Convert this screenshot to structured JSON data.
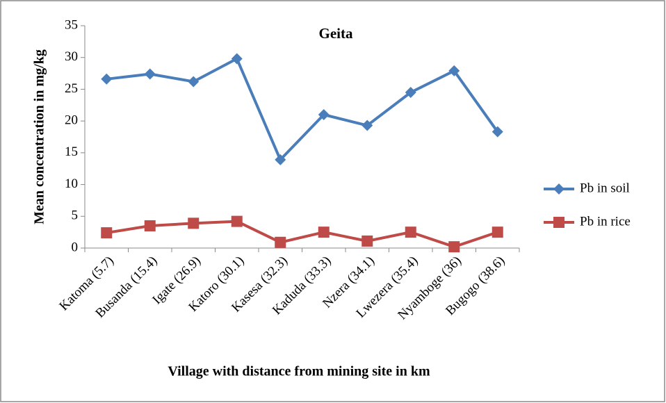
{
  "chart_data": {
    "type": "line",
    "title": "Geita",
    "x_label": "Village with distance from mining site in km",
    "y_label": "Mean concentration in mg/kg",
    "categories": [
      "Katoma (5.7)",
      "Busanda (15.4)",
      "Igate (26.9)",
      "Katoro (30.1)",
      "Kasesa (32.3)",
      "Kaduda (33.3)",
      "Nzera (34.1)",
      "Lwezera (35.4)",
      "Nyamboge (36)",
      "Bugogo (38.6)"
    ],
    "series": [
      {
        "name": "Pb in soil",
        "color": "#4a7ebb",
        "marker": "diamond",
        "values": [
          26.6,
          27.4,
          26.2,
          29.8,
          13.9,
          21.0,
          19.3,
          24.5,
          27.9,
          18.3
        ]
      },
      {
        "name": "Pb in rice",
        "color": "#be4b48",
        "marker": "square",
        "values": [
          2.4,
          3.5,
          3.9,
          4.2,
          0.9,
          2.5,
          1.1,
          2.5,
          0.2,
          2.5
        ]
      }
    ],
    "ylim": [
      0,
      35
    ],
    "yticks": [
      0,
      5,
      10,
      15,
      20,
      25,
      30,
      35
    ],
    "grid": false,
    "legend": "right"
  }
}
